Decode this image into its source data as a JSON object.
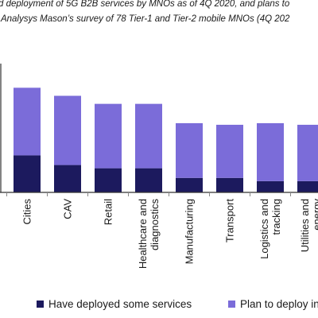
{
  "title": "d deployment of 5G B2B services by MNOs as of 4Q 2020, and plans to",
  "subtitle": ": Analysys Mason’s survey of 78 Tier-1 and Tier-2 mobile MNOs (4Q 202",
  "colors": {
    "deployed": "#1c1a5e",
    "plan": "#7b6cd9",
    "axis": "#333333",
    "ticks": "#888888"
  },
  "chart_data": {
    "type": "bar",
    "stacked": true,
    "categories": [
      "Cities",
      "CAV",
      "Retail",
      "Healthcare and diagnostics",
      "Manufacturing",
      "Transport",
      "Logistics and tracking",
      "Utilities and energy"
    ],
    "category_lines": [
      [
        "Cities"
      ],
      [
        "CAV"
      ],
      [
        "Retail"
      ],
      [
        "Healthcare and",
        "diagnostics"
      ],
      [
        "Manufacturing"
      ],
      [
        "Transport"
      ],
      [
        "Logistics and",
        "tracking"
      ],
      [
        "Utilities and",
        "energy"
      ]
    ],
    "series": [
      {
        "name": "Have deployed some services",
        "values": [
          23,
          17,
          15,
          15,
          9,
          9,
          7,
          7
        ]
      },
      {
        "name": "Plan to deploy in",
        "values": [
          42,
          43,
          40,
          40,
          34,
          33,
          36,
          35
        ]
      }
    ],
    "ylim": [
      0,
      80
    ],
    "legend_position": "bottom"
  },
  "legend": [
    {
      "label": "Have deployed some services",
      "color": "#1c1a5e"
    },
    {
      "label": "Plan to deploy in",
      "color": "#7b6cd9"
    }
  ]
}
